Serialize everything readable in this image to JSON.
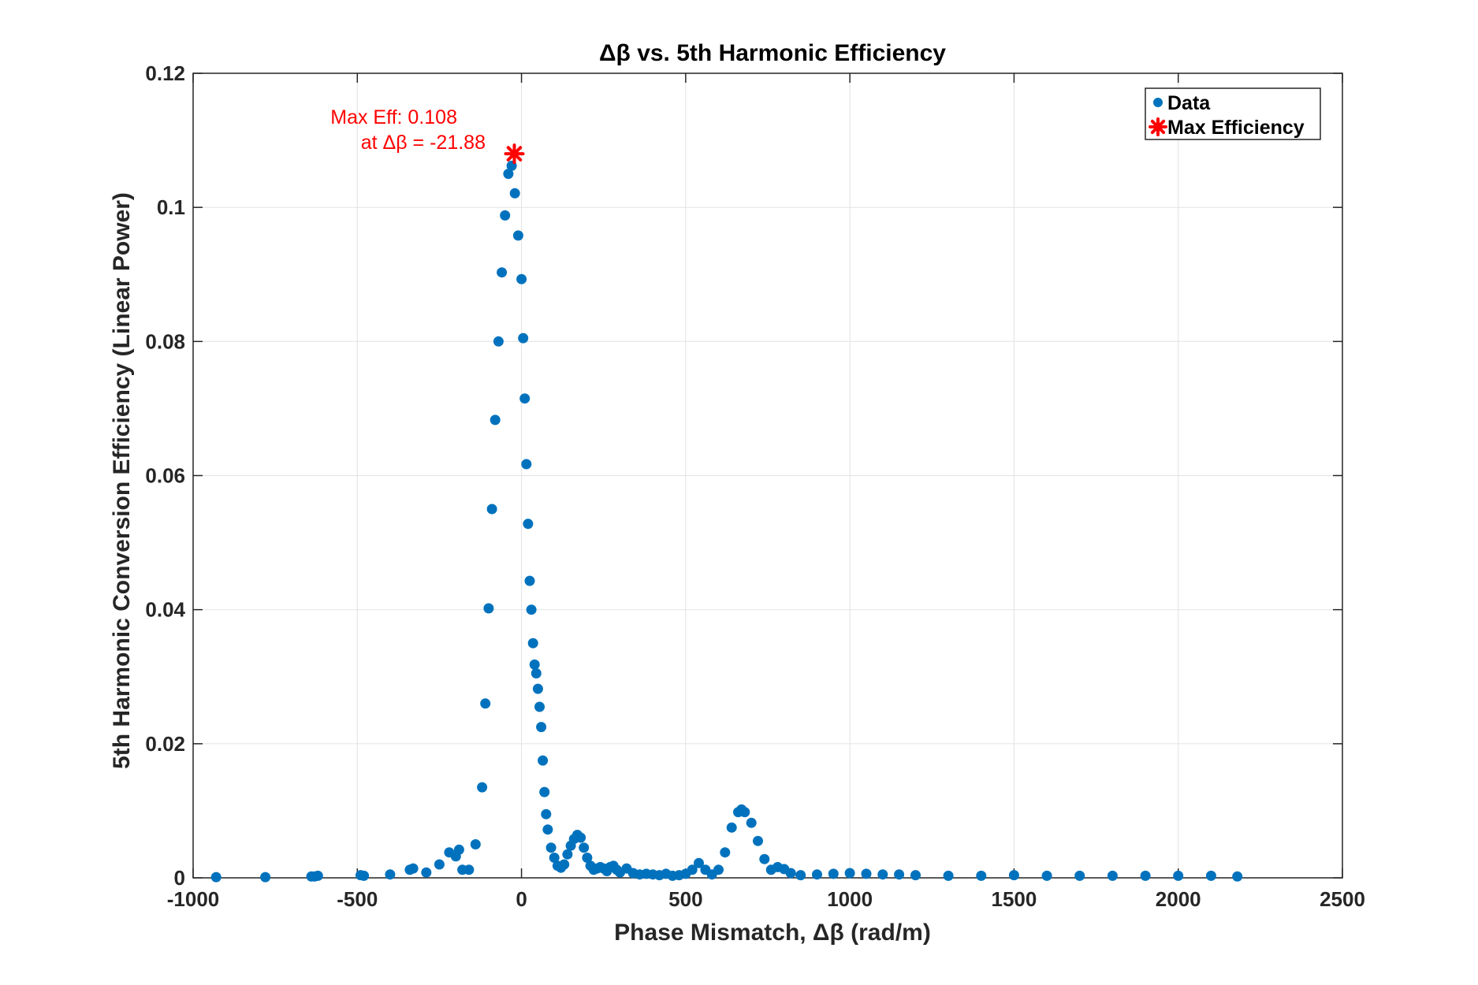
{
  "chart_data": {
    "type": "scatter",
    "title": "Δβ  vs.  5th  Harmonic  Efficiency",
    "xlabel": "Phase  Mismatch,  Δβ  (rad/m)",
    "ylabel": "5th Harmonic Conversion Efficiency (Linear Power)",
    "xlim": [
      -1000,
      2500
    ],
    "ylim": [
      0,
      0.12
    ],
    "xticks": [
      -1000,
      -500,
      0,
      500,
      1000,
      1500,
      2000,
      2500
    ],
    "xtick_labels": [
      "-1000",
      "-500",
      "0",
      "500",
      "1000",
      "1500",
      "2000",
      "2500"
    ],
    "yticks": [
      0,
      0.02,
      0.04,
      0.06,
      0.08,
      0.1,
      0.12
    ],
    "ytick_labels": [
      "0",
      "0.02",
      "0.04",
      "0.06",
      "0.08",
      "0.1",
      "0.12"
    ],
    "grid": true,
    "legend_position": "top-right",
    "colors": {
      "data": "#0072BD",
      "max": "#ff0000",
      "grid": "#e6e6e6",
      "axis": "#262626"
    },
    "series": [
      {
        "name": "Data",
        "marker": "dot",
        "x": [
          -930,
          -780,
          -640,
          -630,
          -620,
          -490,
          -480,
          -400,
          -340,
          -330,
          -290,
          -250,
          -220,
          -200,
          -190,
          -180,
          -160,
          -140,
          -120,
          -110,
          -100,
          -90,
          -80,
          -70,
          -60,
          -50,
          -40,
          -30,
          -20,
          -10,
          0,
          5,
          10,
          15,
          20,
          25,
          30,
          35,
          40,
          45,
          50,
          55,
          60,
          65,
          70,
          75,
          80,
          90,
          100,
          110,
          120,
          130,
          140,
          150,
          160,
          170,
          180,
          190,
          200,
          210,
          220,
          230,
          240,
          250,
          260,
          270,
          280,
          290,
          300,
          320,
          340,
          360,
          380,
          400,
          420,
          440,
          460,
          480,
          500,
          520,
          540,
          560,
          580,
          600,
          620,
          640,
          660,
          670,
          680,
          700,
          720,
          740,
          760,
          780,
          800,
          820,
          850,
          900,
          950,
          1000,
          1050,
          1100,
          1150,
          1200,
          1300,
          1400,
          1500,
          1600,
          1700,
          1800,
          1900,
          2000,
          2100,
          2180
        ],
        "y": [
          0.0001,
          0.0001,
          0.0002,
          0.0002,
          0.0003,
          0.0004,
          0.0003,
          0.0005,
          0.0012,
          0.0014,
          0.0008,
          0.002,
          0.0038,
          0.0032,
          0.0042,
          0.0012,
          0.0012,
          0.005,
          0.0135,
          0.026,
          0.0402,
          0.055,
          0.0683,
          0.08,
          0.0903,
          0.0988,
          0.105,
          0.1062,
          0.1021,
          0.0958,
          0.0893,
          0.0805,
          0.0715,
          0.0617,
          0.0528,
          0.0443,
          0.04,
          0.035,
          0.0318,
          0.0305,
          0.0282,
          0.0255,
          0.0225,
          0.0175,
          0.0128,
          0.0095,
          0.0072,
          0.0045,
          0.003,
          0.0018,
          0.0015,
          0.002,
          0.0035,
          0.0048,
          0.0058,
          0.0064,
          0.006,
          0.0045,
          0.003,
          0.0018,
          0.0012,
          0.0014,
          0.0016,
          0.0014,
          0.001,
          0.0016,
          0.0018,
          0.0012,
          0.0008,
          0.0014,
          0.0007,
          0.0005,
          0.0006,
          0.0005,
          0.0004,
          0.0006,
          0.0003,
          0.0004,
          0.0006,
          0.0012,
          0.0022,
          0.0012,
          0.0005,
          0.0012,
          0.0038,
          0.0075,
          0.0098,
          0.0102,
          0.0098,
          0.0082,
          0.0055,
          0.0028,
          0.0012,
          0.0016,
          0.0013,
          0.0007,
          0.0004,
          0.0005,
          0.0006,
          0.0007,
          0.0006,
          0.0005,
          0.0005,
          0.0004,
          0.0003,
          0.0003,
          0.0004,
          0.0003,
          0.0003,
          0.0003,
          0.0003,
          0.0003,
          0.0003,
          0.0002
        ]
      },
      {
        "name": "Max Efficiency",
        "marker": "asterisk",
        "x": [
          -21.88
        ],
        "y": [
          0.108
        ]
      }
    ],
    "annotation": {
      "line1": "Max  Eff:  0.108",
      "line2": "at  Δβ  =  -21.88"
    }
  }
}
